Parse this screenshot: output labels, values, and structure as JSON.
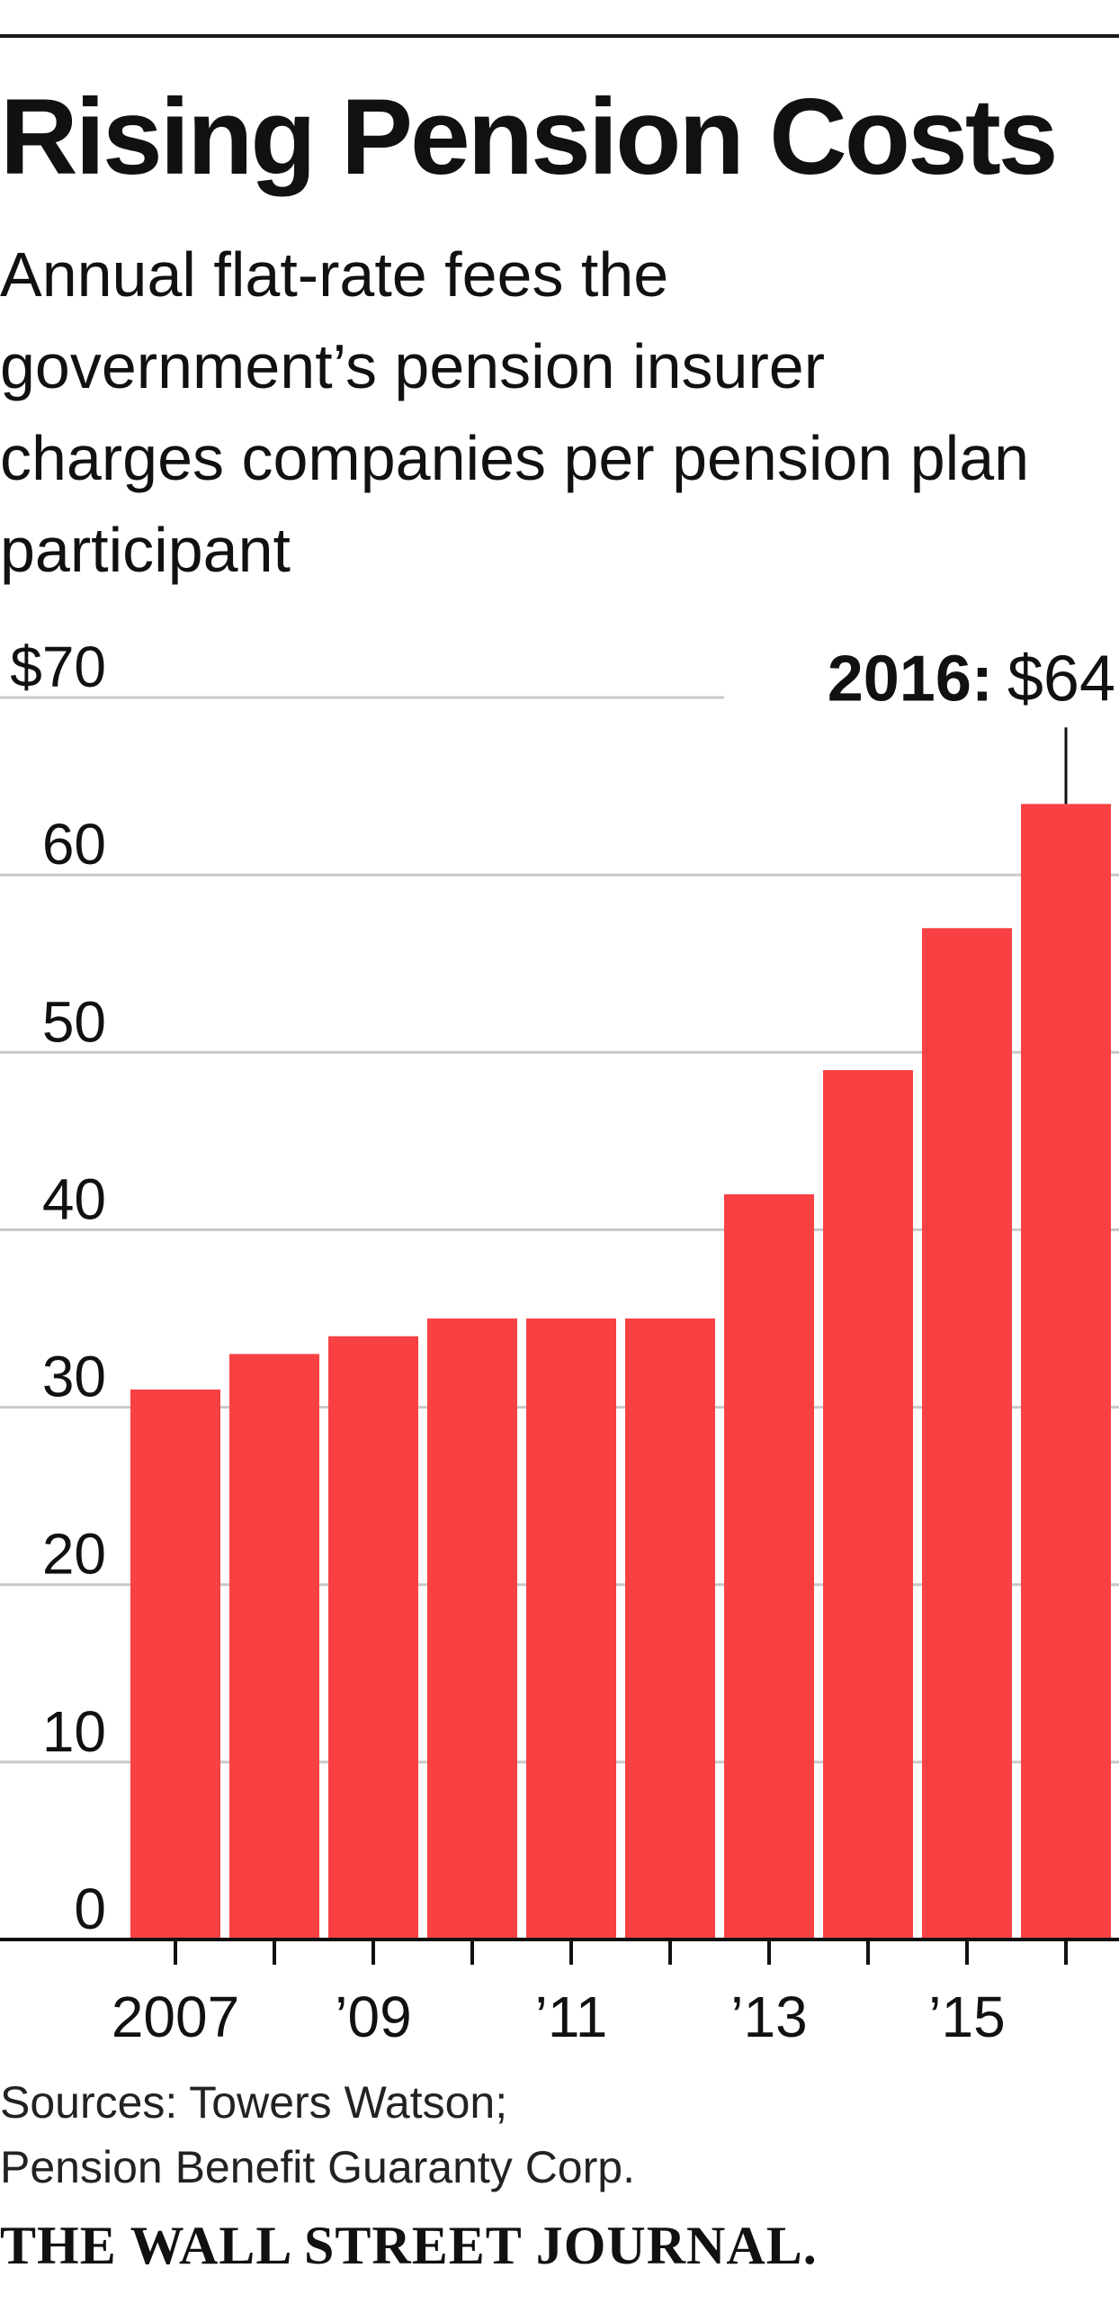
{
  "headline": "Rising Pension Costs",
  "subtitle": "Annual flat-rate fees the government’s pension insurer charges companies per pension plan participant",
  "source_lines": [
    "Sources: Towers Watson;",
    "Pension Benefit Guaranty Corp."
  ],
  "publisher": "THE WALL STREET JOURNAL.",
  "colors": {
    "bar": "#f94144",
    "grid": "#c8c8c8",
    "axis": "#111111"
  },
  "chart_data": {
    "type": "bar",
    "title": "Rising Pension Costs",
    "xlabel": "",
    "ylabel": "",
    "ylim": [
      0,
      70
    ],
    "grid": true,
    "yticks": [
      0,
      10,
      20,
      30,
      40,
      50,
      60,
      70
    ],
    "ytick_labels": [
      "0",
      "10",
      "20",
      "30",
      "40",
      "50",
      "60",
      "$70"
    ],
    "categories": [
      "2007",
      "2008",
      "2009",
      "2010",
      "2011",
      "2012",
      "2013",
      "2014",
      "2015",
      "2016"
    ],
    "xtick_labels": [
      "2007",
      "",
      "’09",
      "",
      "’11",
      "",
      "’13",
      "",
      "’15",
      ""
    ],
    "values": [
      31,
      33,
      34,
      35,
      35,
      35,
      42,
      49,
      57,
      64
    ],
    "annotation": {
      "year": "2016:",
      "value": "$64",
      "category": "2016"
    }
  }
}
